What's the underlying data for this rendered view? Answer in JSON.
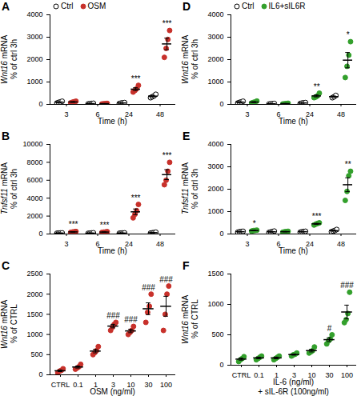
{
  "chart_data": [
    {
      "type": "scatter",
      "title": "A",
      "ylabel": "Wnt16 mRNA\n% of ctrl 3h",
      "xlabel": "Time (h)",
      "categories": [
        "3",
        "6",
        "24",
        "48"
      ],
      "ylim": [
        0,
        4000
      ],
      "yticks": [
        0,
        1000,
        2000,
        3000,
        4000
      ],
      "legend": "top-left",
      "series": [
        {
          "name": "Ctrl",
          "color": "#000000",
          "marker": "circle-open",
          "values": [
            [
              60,
              90,
              110,
              140
            ],
            [
              20,
              30,
              40,
              50
            ],
            [
              40,
              60,
              70,
              80
            ],
            [
              300,
              340,
              380,
              450
            ]
          ],
          "means": [
            100,
            35,
            63,
            368
          ],
          "errors": [
            17,
            7,
            8,
            32
          ]
        },
        {
          "name": "OSM",
          "color": "#c8312b",
          "marker": "circle",
          "values": [
            [
              70,
              100,
              120,
              140
            ],
            [
              20,
              30,
              35,
              45
            ],
            [
              550,
              620,
              700,
              850
            ],
            [
              2100,
              2500,
              2900,
              3300
            ]
          ],
          "means": [
            108,
            33,
            680,
            2700
          ],
          "errors": [
            15,
            5,
            64,
            258
          ]
        }
      ],
      "significance": [
        null,
        null,
        "***",
        "***"
      ]
    },
    {
      "type": "scatter",
      "title": "B",
      "ylabel": "Tnfsf11 mRNA\n% of ctrl 3h",
      "xlabel": "Time (h)",
      "categories": [
        "3",
        "6",
        "24",
        "48"
      ],
      "ylim": [
        0,
        10000
      ],
      "yticks": [
        0,
        2000,
        4000,
        6000,
        8000,
        10000
      ],
      "series": [
        {
          "name": "Ctrl",
          "color": "#000000",
          "marker": "circle-open",
          "values": [
            [
              80,
              100,
              110,
              120
            ],
            [
              70,
              90,
              110,
              130
            ],
            [
              80,
              100,
              110,
              120
            ],
            [
              100,
              130,
              160,
              200
            ]
          ],
          "means": [
            103,
            100,
            103,
            148
          ],
          "errors": [
            9,
            13,
            9,
            21
          ]
        },
        {
          "name": "OSM",
          "color": "#c8312b",
          "marker": "circle",
          "values": [
            [
              180,
              220,
              250,
              280
            ],
            [
              170,
              200,
              230,
              260
            ],
            [
              1800,
              2200,
              2600,
              3300
            ],
            [
              5500,
              6000,
              7000,
              8000
            ]
          ],
          "means": [
            233,
            215,
            2475,
            6625
          ],
          "errors": [
            21,
            19,
            318,
            556
          ]
        }
      ],
      "significance": [
        "***",
        "***",
        "***",
        "***"
      ]
    },
    {
      "type": "scatter",
      "title": "C",
      "ylabel": "Wnt16 mRNA\n% of CTRL",
      "xlabel": "OSM (ng/ml)",
      "categories": [
        "CTRL",
        "0.1",
        "1",
        "3",
        "10",
        "30",
        "100"
      ],
      "ylim": [
        0,
        2500
      ],
      "yticks": [
        0,
        500,
        1000,
        1500,
        2000,
        2500
      ],
      "series": [
        {
          "color": "#c8312b",
          "marker": "circle",
          "values": [
            [
              50,
              90,
              110,
              150
            ],
            [
              140,
              170,
              200,
              260
            ],
            [
              500,
              550,
              600,
              700
            ],
            [
              1100,
              1180,
              1250,
              1300
            ],
            [
              1000,
              1050,
              1100,
              1200
            ],
            [
              1300,
              1550,
              1700,
              2000
            ],
            [
              1100,
              1500,
              2000,
              2200
            ]
          ],
          "means": [
            100,
            193,
            588,
            1208,
            1088,
            1638,
            1700
          ],
          "errors": [
            21,
            26,
            43,
            44,
            43,
            146,
            247
          ]
        }
      ],
      "significance": [
        null,
        null,
        null,
        "###",
        "###",
        "###",
        "###"
      ]
    },
    {
      "type": "scatter",
      "title": "D",
      "ylabel": "Wnt16 mRNA\n% of ctrl 3h",
      "xlabel": "Time (h)",
      "categories": [
        "3",
        "6",
        "24",
        "48"
      ],
      "ylim": [
        0,
        4000
      ],
      "yticks": [
        0,
        1000,
        2000,
        3000,
        4000
      ],
      "legend": "top-left",
      "series": [
        {
          "name": "Ctrl",
          "color": "#000000",
          "marker": "circle-open",
          "values": [
            [
              60,
              90,
              110,
              140
            ],
            [
              15,
              25,
              30,
              40
            ],
            [
              40,
              60,
              70,
              80
            ],
            [
              300,
              340,
              400
            ]
          ],
          "means": [
            100,
            28,
            63,
            347
          ],
          "errors": [
            17,
            5,
            8,
            29
          ]
        },
        {
          "name": "IL6+sIL6R",
          "color": "#33a02c",
          "marker": "circle",
          "values": [
            [
              60,
              90,
              110,
              150
            ],
            [
              20,
              30,
              40,
              50
            ],
            [
              300,
              330,
              380,
              500
            ],
            [
              1200,
              1700,
              2200,
              2800
            ]
          ],
          "means": [
            103,
            35,
            378,
            1975
          ],
          "errors": [
            19,
            7,
            44,
            342
          ]
        }
      ],
      "significance": [
        null,
        null,
        "**",
        "*"
      ]
    },
    {
      "type": "scatter",
      "title": "E",
      "ylabel": "Tnfsf11 mRNA\n% of ctrl 3h",
      "xlabel": "Time (h)",
      "categories": [
        "3",
        "6",
        "24",
        "48"
      ],
      "ylim": [
        0,
        4000
      ],
      "yticks": [
        0,
        1000,
        2000,
        3000,
        4000
      ],
      "series": [
        {
          "name": "Ctrl",
          "color": "#000000",
          "marker": "circle-open",
          "values": [
            [
              80,
              100,
              110,
              120
            ],
            [
              70,
              90,
              110,
              130
            ],
            [
              80,
              100,
              110,
              120
            ],
            [
              100,
              130,
              160,
              200
            ]
          ],
          "means": [
            103,
            100,
            103,
            148
          ],
          "errors": [
            9,
            13,
            9,
            21
          ]
        },
        {
          "name": "IL6+sIL6R",
          "color": "#33a02c",
          "marker": "circle",
          "values": [
            [
              130,
              150,
              160,
              170
            ],
            [
              80,
              100,
              110,
              120
            ],
            [
              400,
              440,
              470,
              500
            ],
            [
              1500,
              1900,
              2600,
              2800
            ]
          ],
          "means": [
            153,
            103,
            453,
            2200
          ],
          "errors": [
            9,
            9,
            21,
            310
          ]
        }
      ],
      "significance": [
        "*",
        null,
        "***",
        "**"
      ]
    },
    {
      "type": "scatter",
      "title": "F",
      "ylabel": "Wnt16 mRNA\n% of CTRL",
      "xlabel": "IL-6 (ng/ml)\n+ sIL-6R (100ng/ml)",
      "categories": [
        "CTRL",
        "0.1",
        "1",
        "3",
        "10",
        "30",
        "100"
      ],
      "ylim": [
        0,
        1500
      ],
      "yticks": [
        0,
        500,
        1000,
        1500
      ],
      "series": [
        {
          "color": "#33a02c",
          "marker": "circle",
          "values": [
            [
              60,
              90,
              110,
              140
            ],
            [
              90,
              110,
              130,
              150
            ],
            [
              90,
              110,
              130,
              150
            ],
            [
              150,
              170,
              180,
              200
            ],
            [
              200,
              220,
              240,
              300
            ],
            [
              350,
              400,
              430,
              500
            ],
            [
              700,
              750,
              850,
              1200
            ]
          ],
          "means": [
            100,
            120,
            120,
            175,
            240,
            420,
            875
          ],
          "errors": [
            17,
            13,
            13,
            10,
            22,
            31,
            113
          ]
        }
      ],
      "significance": [
        null,
        null,
        null,
        null,
        null,
        "#",
        "###"
      ]
    }
  ]
}
